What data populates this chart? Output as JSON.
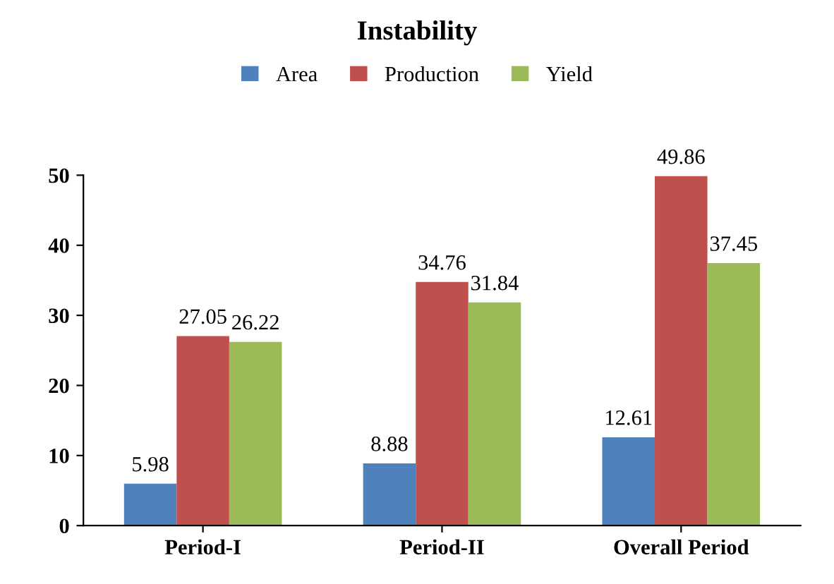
{
  "chart_data": {
    "type": "bar",
    "title": "Instability",
    "categories": [
      "Period-I",
      "Period-II",
      "Overall Period"
    ],
    "series": [
      {
        "name": "Area",
        "color": "#4f81bd",
        "values": [
          5.98,
          8.88,
          12.61
        ]
      },
      {
        "name": "Production",
        "color": "#c0504d",
        "values": [
          27.05,
          34.76,
          49.86
        ]
      },
      {
        "name": "Yield",
        "color": "#9bbb59",
        "values": [
          26.22,
          31.84,
          37.45
        ]
      }
    ],
    "ylim": [
      0,
      50
    ],
    "yticks": [
      0,
      10,
      20,
      30,
      40,
      50
    ],
    "grid": false,
    "legend": "top",
    "data_labels": true
  }
}
